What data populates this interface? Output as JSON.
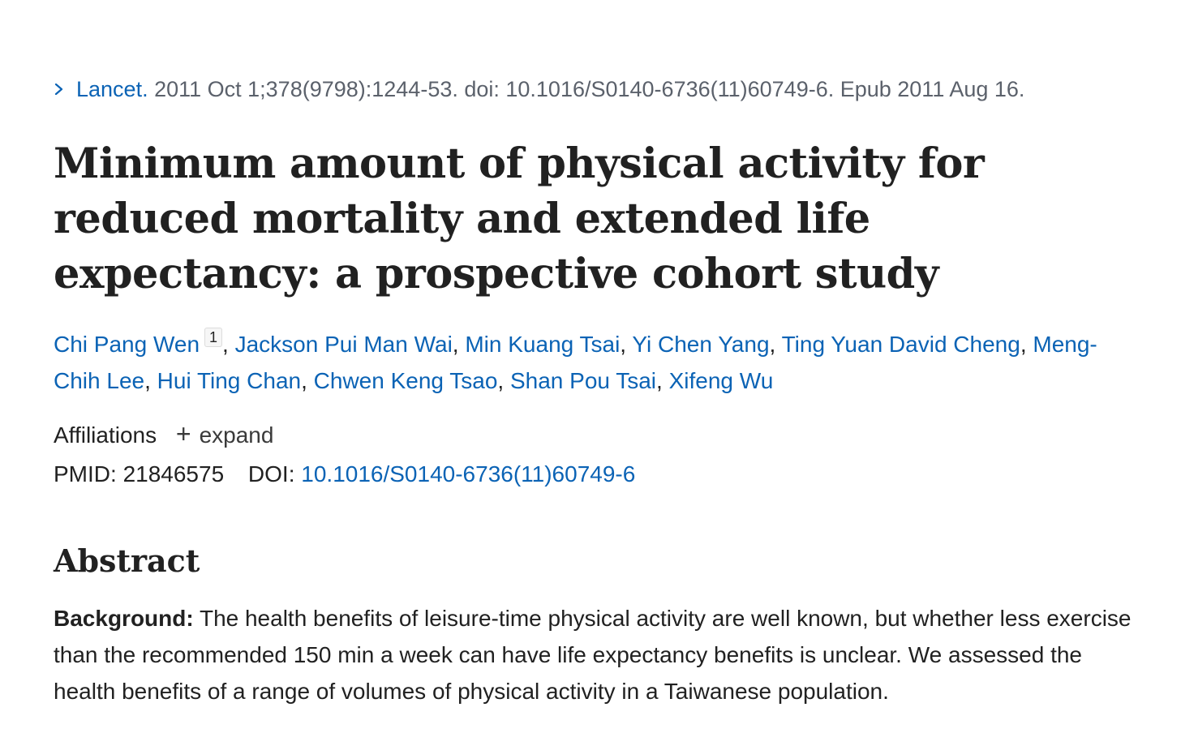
{
  "citation": {
    "journal": "Lancet.",
    "details": " 2011 Oct 1;378(9798):1244-53. doi: 10.1016/S0140-6736(11)60749-6. Epub 2011 Aug 16."
  },
  "title": "Minimum amount of physical activity for reduced mortality and extended life expectancy: a prospective cohort study",
  "authors": [
    {
      "name": "Chi Pang Wen",
      "affiliation_marker": "1"
    },
    {
      "name": "Jackson Pui Man Wai"
    },
    {
      "name": "Min Kuang Tsai"
    },
    {
      "name": "Yi Chen Yang"
    },
    {
      "name": "Ting Yuan David Cheng"
    },
    {
      "name": "Meng-Chih Lee"
    },
    {
      "name": "Hui Ting Chan"
    },
    {
      "name": "Chwen Keng Tsao"
    },
    {
      "name": "Shan Pou Tsai"
    },
    {
      "name": "Xifeng Wu"
    }
  ],
  "affiliations": {
    "label": "Affiliations",
    "expand_icon": "plus-icon",
    "expand_label": "expand"
  },
  "ids": {
    "pmid_label": "PMID:",
    "pmid": "21846575",
    "doi_label": "DOI:",
    "doi": "10.1016/S0140-6736(11)60749-6"
  },
  "abstract": {
    "heading": "Abstract",
    "background_label": "Background:",
    "background_text": " The health benefits of leisure-time physical activity are well known, but whether less exercise than the recommended 150 min a week can have life expectancy benefits is unclear. We assessed the health benefits of a range of volumes of physical activity in a Taiwanese population."
  },
  "colors": {
    "link": "#0b63b5",
    "text": "#212121",
    "muted": "#5b616b"
  }
}
